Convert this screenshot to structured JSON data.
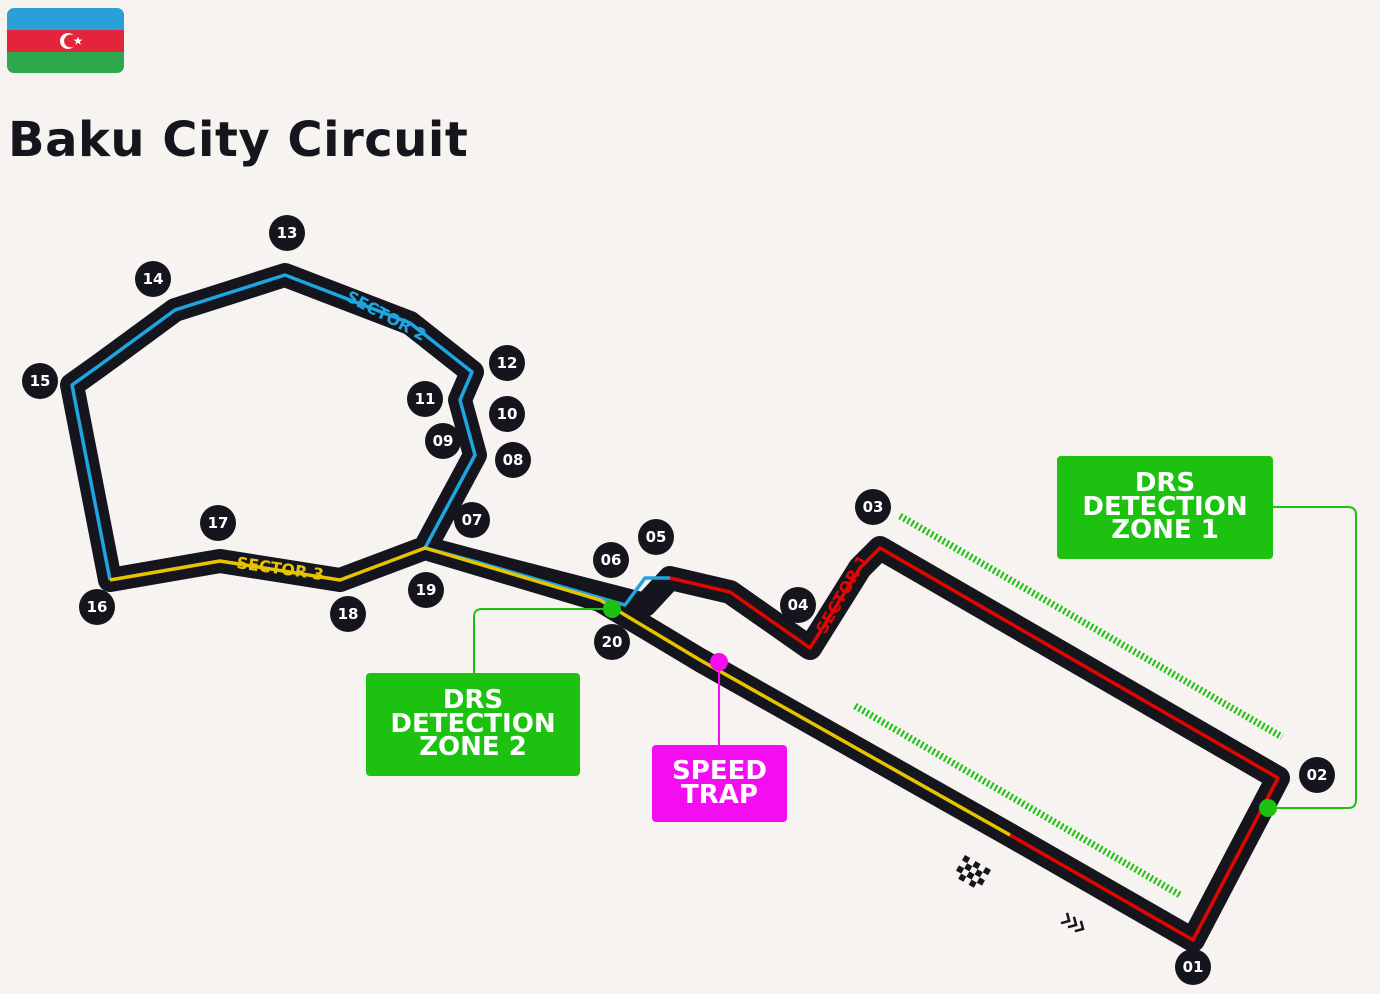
{
  "circuit": {
    "name": "Baku City Circuit",
    "country_flag": "azerbaijan-flag"
  },
  "sectors": [
    {
      "label": "SECTOR 1",
      "color": "#e10600"
    },
    {
      "label": "SECTOR 2",
      "color": "#1fa6e0"
    },
    {
      "label": "SECTOR 3",
      "color": "#e8c400"
    }
  ],
  "turns": [
    "01",
    "02",
    "03",
    "04",
    "05",
    "06",
    "07",
    "08",
    "09",
    "10",
    "11",
    "12",
    "13",
    "14",
    "15",
    "16",
    "17",
    "18",
    "19",
    "20"
  ],
  "drs_detection_zones": [
    {
      "line1": "DRS",
      "line2": "DETECTION",
      "line3": "ZONE 1"
    },
    {
      "line1": "DRS",
      "line2": "DETECTION",
      "line3": "ZONE 2"
    }
  ],
  "speed_trap": {
    "line1": "SPEED",
    "line2": "TRAP"
  },
  "colors": {
    "track": "#15151e",
    "drs": "#1cc20f",
    "speed_trap": "#f40df0",
    "background": "#f6f3f0"
  },
  "icons": [
    "chequered-flag-icon",
    "direction-chevrons-icon"
  ]
}
